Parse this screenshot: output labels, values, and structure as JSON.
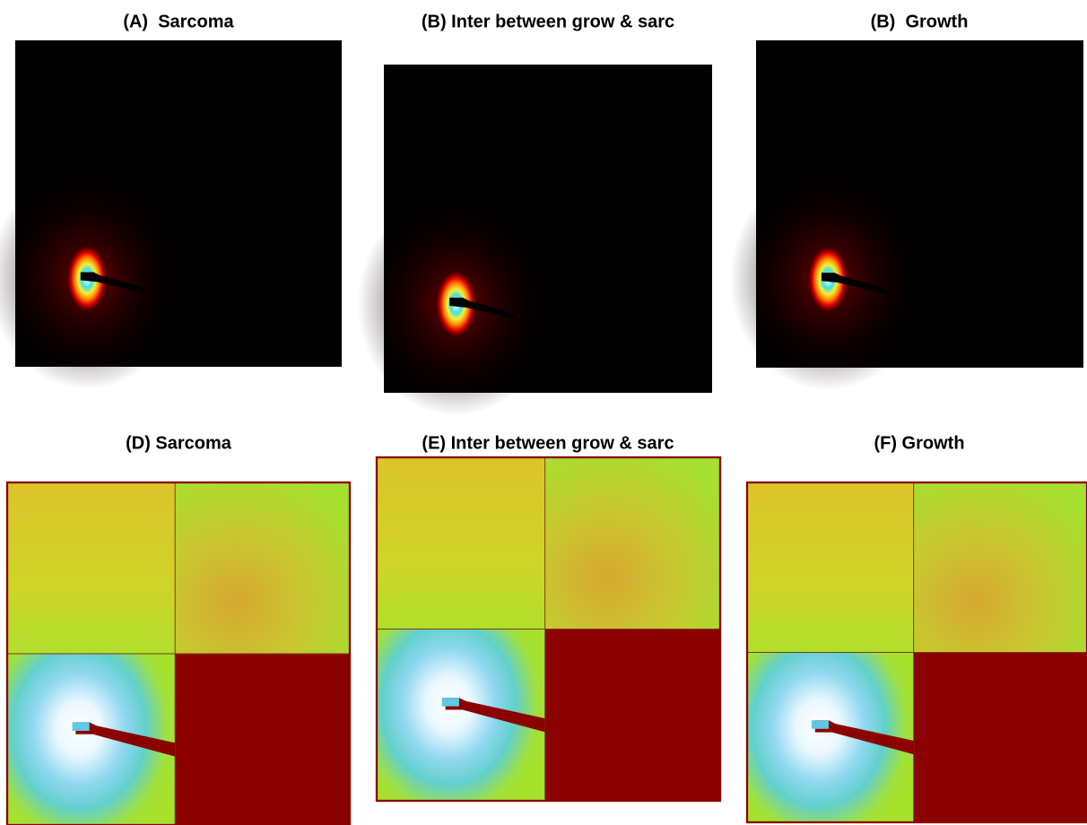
{
  "panels": [
    {
      "title": "(A)  Sarcoma"
    },
    {
      "title": "(B) Inter between grow & sarc"
    },
    {
      "title": "(B)  Growth"
    },
    {
      "title": "(D) Sarcoma"
    },
    {
      "title": "(E) Inter between grow & sarc"
    },
    {
      "title": "(F) Growth"
    }
  ]
}
